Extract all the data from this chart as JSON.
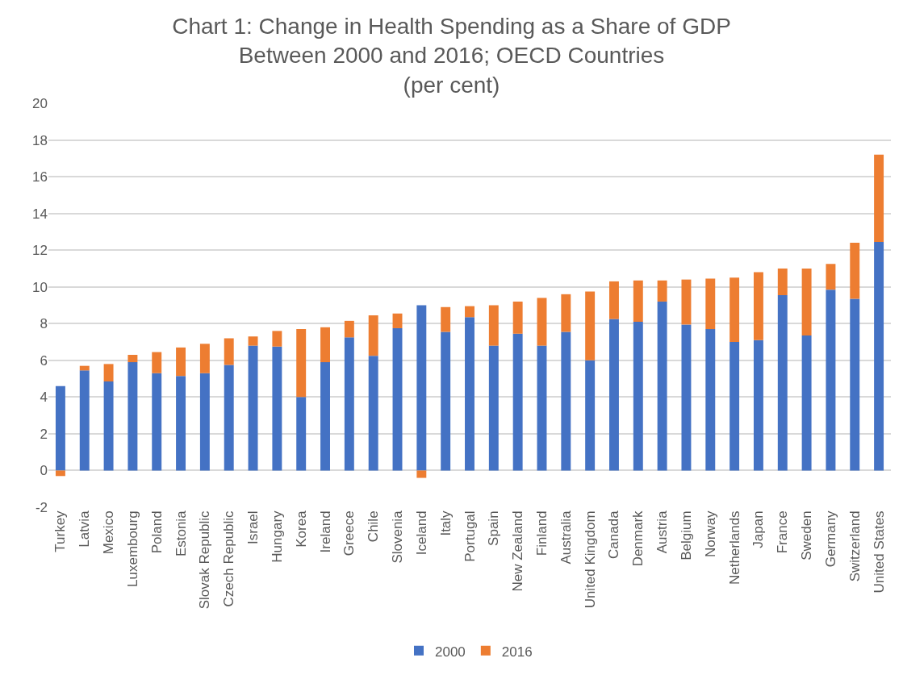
{
  "chart_data": {
    "type": "bar",
    "stacked": true,
    "title": "Chart 1: Change in Health Spending as a Share of GDP\nBetween 2000 and 2016; OECD Countries\n(per cent)",
    "categories": [
      "Turkey",
      "Latvia",
      "Mexico",
      "Luxembourg",
      "Poland",
      "Estonia",
      "Slovak Republic",
      "Czech Republic",
      "Israel",
      "Hungary",
      "Korea",
      "Ireland",
      "Greece",
      "Chile",
      "Slovenia",
      "Iceland",
      "Italy",
      "Portugal",
      "Spain",
      "New Zealand",
      "Finland",
      "Australia",
      "United Kingdom",
      "Canada",
      "Denmark",
      "Austria",
      "Belgium",
      "Norway",
      "Netherlands",
      "Japan",
      "France",
      "Sweden",
      "Germany",
      "Switzerland",
      "United States"
    ],
    "series": [
      {
        "name": "2000",
        "color": "#4472c4",
        "values": [
          4.6,
          5.45,
          4.85,
          5.9,
          5.3,
          5.15,
          5.3,
          5.75,
          6.8,
          6.75,
          4.0,
          5.9,
          7.25,
          6.25,
          7.75,
          9.0,
          7.55,
          8.35,
          6.8,
          7.45,
          6.8,
          7.55,
          6.0,
          8.25,
          8.1,
          9.2,
          7.95,
          7.7,
          7.0,
          7.1,
          9.55,
          7.35,
          9.85,
          9.35,
          12.45
        ]
      },
      {
        "name": "2016",
        "color": "#ed7d31",
        "values": [
          -0.3,
          0.25,
          0.95,
          0.4,
          1.15,
          1.55,
          1.6,
          1.45,
          0.5,
          0.85,
          3.7,
          1.9,
          0.9,
          2.2,
          0.8,
          -0.4,
          1.35,
          0.6,
          2.2,
          1.75,
          2.6,
          2.05,
          3.75,
          2.05,
          2.25,
          1.15,
          2.45,
          2.75,
          3.5,
          3.7,
          1.45,
          3.65,
          1.4,
          3.05,
          4.75
        ]
      }
    ],
    "ylim": [
      -2,
      20
    ],
    "yticks": [
      -2,
      0,
      2,
      4,
      6,
      8,
      10,
      12,
      14,
      16,
      18,
      20
    ],
    "grid": "y",
    "legend": "bottom"
  }
}
